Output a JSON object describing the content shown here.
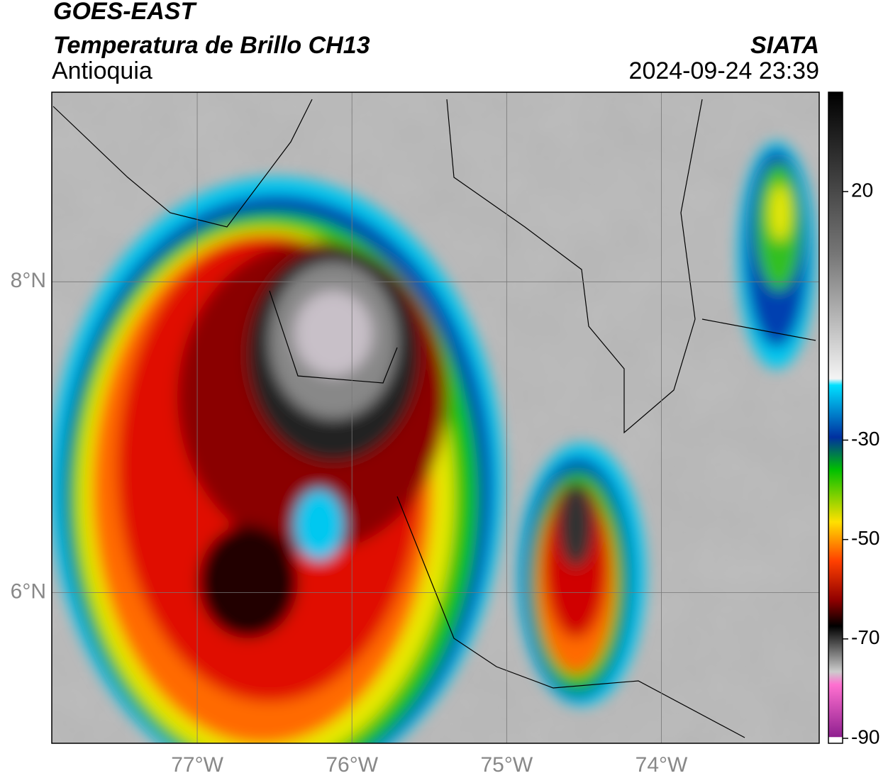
{
  "header": {
    "satellite": "GOES-EAST",
    "product": "Temperatura de Brillo CH13",
    "region": "Antioquia",
    "source": "SIATA",
    "datetime": "2024-09-24 23:39"
  },
  "map": {
    "xlim": [
      -77.94,
      -72.98
    ],
    "ylim": [
      5.03,
      9.22
    ],
    "xticks": [
      {
        "value": -77,
        "label": "77°W"
      },
      {
        "value": -76,
        "label": "76°W"
      },
      {
        "value": -75,
        "label": "75°W"
      },
      {
        "value": -74,
        "label": "74°W"
      }
    ],
    "yticks": [
      {
        "value": 8,
        "label": "8°N"
      },
      {
        "value": 6,
        "label": "6°N"
      }
    ],
    "grid": true
  },
  "colorbar": {
    "ylim": [
      -91,
      40
    ],
    "yticks": [
      20,
      -30,
      -50,
      -70,
      -90
    ]
  }
}
